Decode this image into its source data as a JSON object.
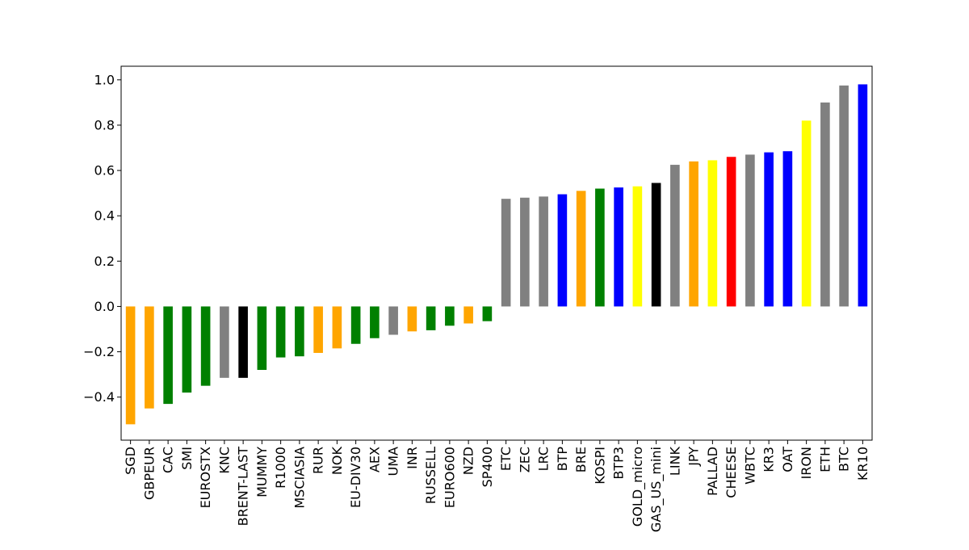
{
  "chart_data": {
    "type": "bar",
    "title": "",
    "xlabel": "",
    "ylabel": "",
    "ylim": [
      -0.59,
      1.06
    ],
    "yticks": [
      -0.4,
      -0.2,
      0.0,
      0.2,
      0.4,
      0.6,
      0.8,
      1.0
    ],
    "ytick_labels": [
      "−0.4",
      "−0.2",
      "0.0",
      "0.2",
      "0.4",
      "0.6",
      "0.8",
      "1.0"
    ],
    "grid": false,
    "legend": "none",
    "categories": [
      "SGD",
      "GBPEUR",
      "CAC",
      "SMI",
      "EUROSTX",
      "KNC",
      "BRENT-LAST",
      "MUMMY",
      "R1000",
      "MSCIASIA",
      "RUR",
      "NOK",
      "EU-DIV30",
      "AEX",
      "UMA",
      "INR",
      "RUSSELL",
      "EURO600",
      "NZD",
      "SP400",
      "ETC",
      "ZEC",
      "LRC",
      "BTP",
      "BRE",
      "KOSPI",
      "BTP3",
      "GOLD_micro",
      "GAS_US_mini",
      "LINK",
      "JPY",
      "PALLAD",
      "CHEESE",
      "WBTC",
      "KR3",
      "OAT",
      "IRON",
      "ETH",
      "BTC",
      "KR10"
    ],
    "values": [
      -0.52,
      -0.45,
      -0.43,
      -0.38,
      -0.35,
      -0.315,
      -0.315,
      -0.28,
      -0.225,
      -0.22,
      -0.205,
      -0.185,
      -0.165,
      -0.14,
      -0.125,
      -0.11,
      -0.105,
      -0.085,
      -0.075,
      -0.065,
      0.475,
      0.48,
      0.485,
      0.495,
      0.51,
      0.52,
      0.525,
      0.53,
      0.545,
      0.625,
      0.64,
      0.645,
      0.66,
      0.67,
      0.68,
      0.685,
      0.82,
      0.9,
      0.975,
      0.98
    ],
    "colors": [
      "#ffa500",
      "#ffa500",
      "#008000",
      "#008000",
      "#008000",
      "#808080",
      "#000000",
      "#008000",
      "#008000",
      "#008000",
      "#ffa500",
      "#ffa500",
      "#008000",
      "#008000",
      "#808080",
      "#ffa500",
      "#008000",
      "#008000",
      "#ffa500",
      "#008000",
      "#808080",
      "#808080",
      "#808080",
      "#0000ff",
      "#ffa500",
      "#008000",
      "#0000ff",
      "#ffff00",
      "#000000",
      "#808080",
      "#ffa500",
      "#ffff00",
      "#ff0000",
      "#808080",
      "#0000ff",
      "#0000ff",
      "#ffff00",
      "#808080",
      "#808080",
      "#0000ff"
    ]
  }
}
